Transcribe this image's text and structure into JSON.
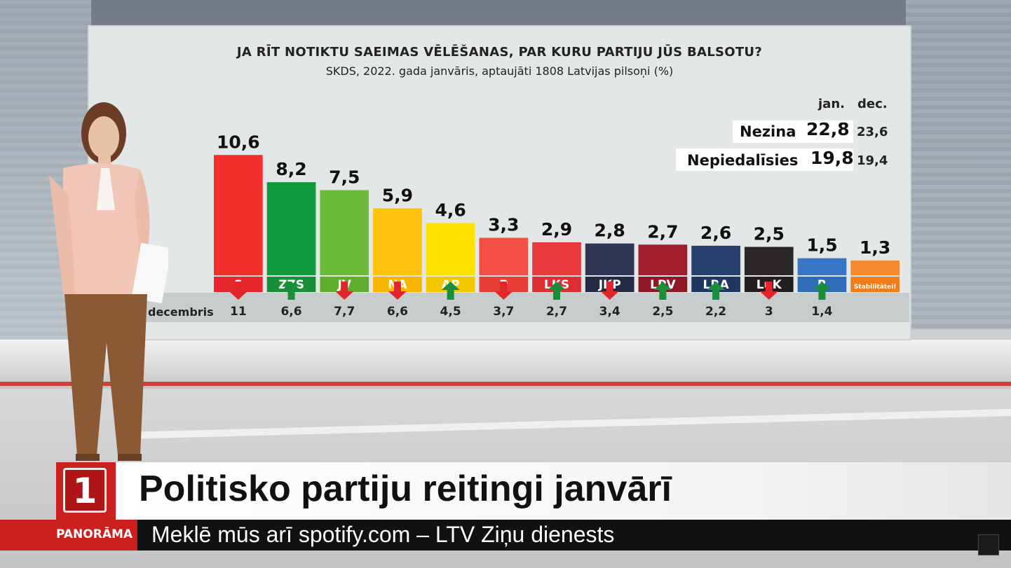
{
  "chart_data": {
    "type": "bar",
    "title": "JA RĪT NOTIKTU SAEIMAS VĒLĒŠANAS, PAR KURU PARTIJU JŪS BALSOTU?",
    "subtitle": "SKDS, 2022. gada janvāris, aptaujāti 1808 Latvijas pilsoņi (%)",
    "value_labels": [
      "10,6",
      "8,2",
      "7,5",
      "5,9",
      "4,6",
      "3,3",
      "2,9",
      "2,8",
      "2,7",
      "2,6",
      "2,5",
      "1,5",
      "1,3"
    ],
    "categories": [
      "S",
      "ZZS",
      "JV",
      "NA",
      "AP",
      "P",
      "LKS",
      "JKP",
      "LPV",
      "LRA",
      "LuK",
      "R",
      "Stabilitātei!"
    ],
    "values": [
      10.6,
      8.2,
      7.5,
      5.9,
      4.6,
      3.3,
      2.9,
      2.8,
      2.7,
      2.6,
      2.5,
      1.5,
      1.3
    ],
    "bar_colors": [
      "#f1302c",
      "#0f9a3e",
      "#6cbb38",
      "#ffc20e",
      "#ffe100",
      "#f35045",
      "#ea3a3e",
      "#2e3553",
      "#9f1d2c",
      "#263f6d",
      "#2b2627",
      "#3a76c7",
      "#f5892b"
    ],
    "label_colors": [
      "#e8262d",
      "#1a8f3a",
      "#5faf2c",
      "#f7b500",
      "#f2c900",
      "#e63e37",
      "#dc2e33",
      "#232a45",
      "#8e1825",
      "#203763",
      "#231f20",
      "#2f6db8",
      "#ef7d1c"
    ],
    "trend": [
      "down",
      "up",
      "down",
      "down",
      "up",
      "down",
      "up",
      "down",
      "up",
      "up",
      "down",
      "up",
      ""
    ],
    "previous_label": "decembris",
    "previous_value_labels": [
      "11",
      "6,6",
      "7,7",
      "6,6",
      "4,5",
      "3,7",
      "2,7",
      "3,4",
      "2,5",
      "2,2",
      "3",
      "1,4",
      ""
    ],
    "previous_values": [
      11,
      6.6,
      7.7,
      6.6,
      4.5,
      3.7,
      2.7,
      3.4,
      2.5,
      2.2,
      3,
      1.4,
      null
    ],
    "ylim": [
      0,
      12
    ],
    "xlabel": "",
    "ylabel": "",
    "side_table": {
      "col_current": "jan.",
      "col_previous": "dec.",
      "rows": [
        {
          "label": "Nezina",
          "current": "22,8",
          "previous": "23,6"
        },
        {
          "label": "Nepiedalīsies",
          "current": "19,8",
          "previous": "19,4"
        }
      ]
    }
  },
  "lower_third": {
    "logo_text": "1",
    "title": "Politisko partiju reitingi janvārī",
    "show": "PANORĀMA",
    "ticker": "Meklē mūs arī spotify.com – LTV Ziņu dienests"
  },
  "colors": {
    "arrow_up": "#1a8f3a",
    "arrow_down": "#e0262b",
    "brand_red": "#cc1f1f"
  }
}
